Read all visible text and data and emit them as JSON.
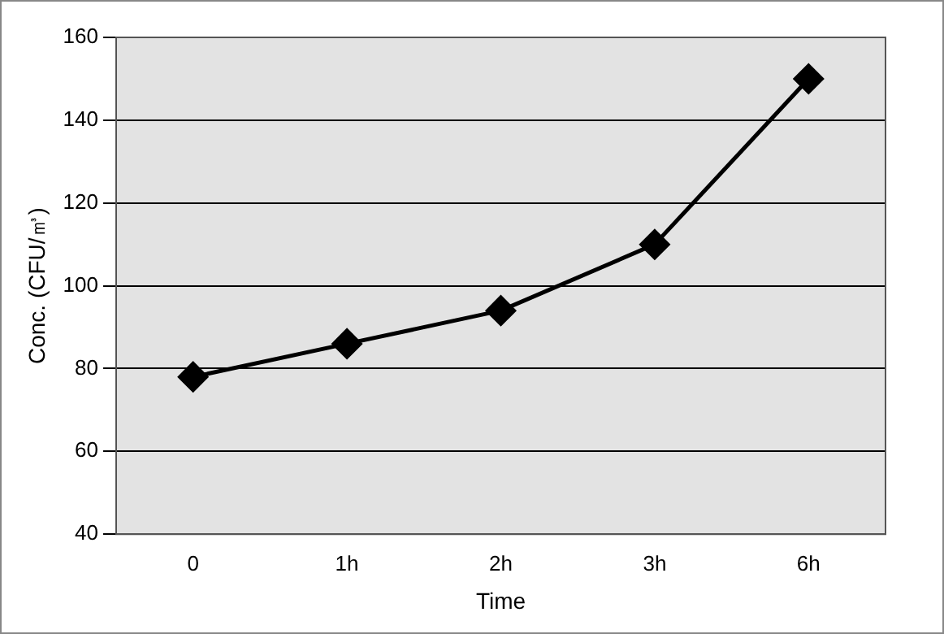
{
  "chart_data": {
    "type": "line",
    "xlabel": "Time",
    "ylabel": "Conc. (CFU/㎥)",
    "categories": [
      "0",
      "1h",
      "2h",
      "3h",
      "6h"
    ],
    "series": [
      {
        "color": "#000000",
        "values": [
          78,
          86,
          94,
          110,
          150
        ]
      }
    ],
    "ylim": [
      40,
      160
    ],
    "yticks": [
      40,
      60,
      80,
      100,
      120,
      140,
      160
    ],
    "grid": "y",
    "legend": false,
    "marker": "diamond",
    "line_style": "solid"
  }
}
